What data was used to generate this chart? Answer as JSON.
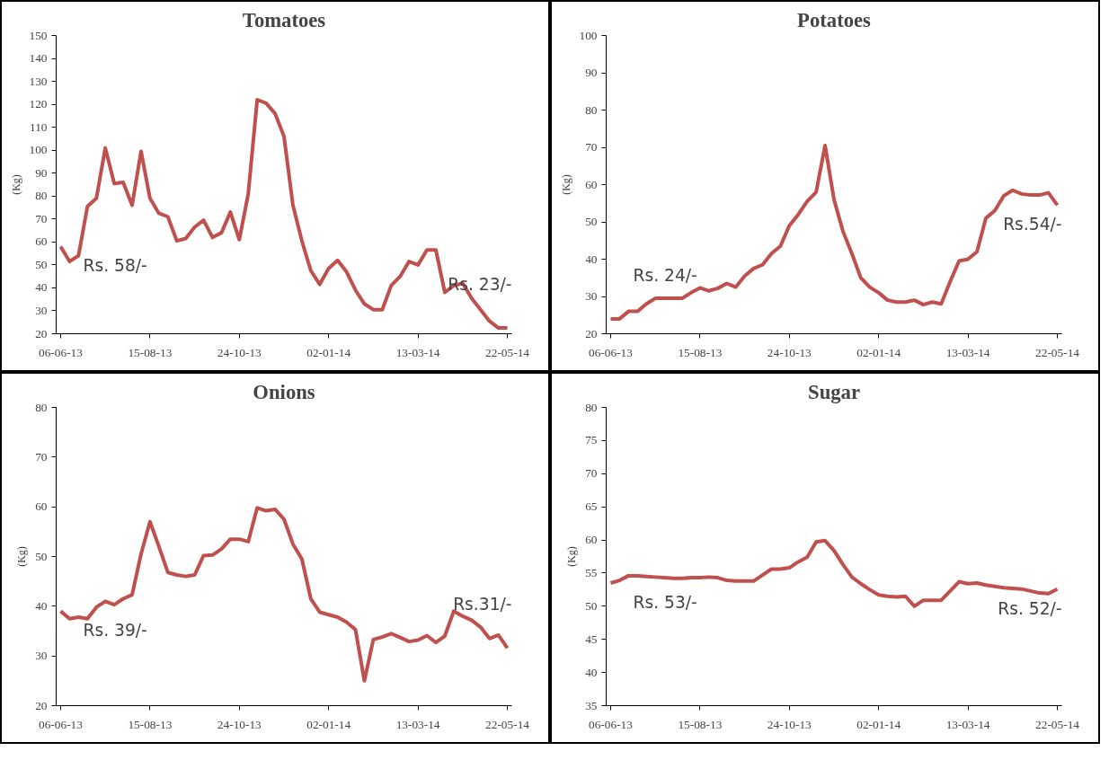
{
  "chart_data": [
    {
      "type": "line",
      "title": "Tomatoes",
      "ylabel": "(Kg)",
      "categories": [
        "06-06-13",
        null,
        null,
        null,
        null,
        null,
        null,
        null,
        null,
        null,
        "15-08-13",
        null,
        null,
        null,
        null,
        null,
        null,
        null,
        null,
        null,
        "24-10-13",
        null,
        null,
        null,
        null,
        null,
        null,
        null,
        null,
        null,
        "02-01-14",
        null,
        null,
        null,
        null,
        null,
        null,
        null,
        null,
        null,
        "13-03-14",
        null,
        null,
        null,
        null,
        null,
        null,
        null,
        null,
        null,
        "22-05-14"
      ],
      "series": [
        {
          "color": "#c0504d",
          "values": [
            58,
            51.5,
            54,
            75.5,
            79,
            101,
            85.5,
            86,
            76,
            99.5,
            79,
            72.5,
            71,
            60.5,
            61.5,
            66.5,
            69.5,
            62,
            64,
            73,
            61,
            81,
            122,
            120.5,
            116,
            106,
            76,
            60.5,
            47.5,
            41.5,
            48.5,
            52,
            47,
            39,
            33,
            30.5,
            30.5,
            41,
            45,
            51.5,
            50,
            56.5,
            56.5,
            38,
            41,
            42,
            35.5,
            30.5,
            25.5,
            22.5,
            22.5
          ]
        }
      ],
      "ylim": [
        20,
        150
      ],
      "yticks": [
        20,
        30,
        40,
        50,
        60,
        70,
        80,
        90,
        100,
        110,
        120,
        130,
        140,
        150
      ],
      "grid": false,
      "marker": "none",
      "line_style": "solid",
      "annotations": [
        {
          "text": "Rs. 58/-",
          "x": "06-06-13",
          "y": 58
        },
        {
          "text": "Rs. 23/-",
          "x": "22-05-14",
          "y": 22.5
        }
      ]
    },
    {
      "type": "line",
      "title": "Potatoes",
      "ylabel": "(Kg)",
      "categories": [
        "06-06-13",
        null,
        null,
        null,
        null,
        null,
        null,
        null,
        null,
        null,
        "15-08-13",
        null,
        null,
        null,
        null,
        null,
        null,
        null,
        null,
        null,
        "24-10-13",
        null,
        null,
        null,
        null,
        null,
        null,
        null,
        null,
        null,
        "02-01-14",
        null,
        null,
        null,
        null,
        null,
        null,
        null,
        null,
        null,
        "13-03-14",
        null,
        null,
        null,
        null,
        null,
        null,
        null,
        null,
        null,
        "22-05-14"
      ],
      "series": [
        {
          "color": "#c0504d",
          "values": [
            24,
            24,
            26,
            26,
            28,
            29.5,
            29.5,
            29.5,
            29.5,
            31,
            32.3,
            31.5,
            32.2,
            33.5,
            32.5,
            35.5,
            37.5,
            38.5,
            41.5,
            43.5,
            49,
            52,
            55.5,
            58,
            70.5,
            56,
            47.5,
            41.5,
            35,
            32.5,
            31,
            29,
            28.5,
            28.5,
            29,
            27.8,
            28.5,
            28,
            34,
            39.5,
            40,
            42,
            51,
            53,
            57,
            58.5,
            57.5,
            57.2,
            57.2,
            57.8,
            54.5
          ]
        }
      ],
      "ylim": [
        20,
        100
      ],
      "yticks": [
        20,
        30,
        40,
        50,
        60,
        70,
        80,
        90,
        100
      ],
      "grid": false,
      "marker": "none",
      "line_style": "solid",
      "annotations": [
        {
          "text": "Rs. 24/-",
          "x": "06-06-13",
          "y": 24
        },
        {
          "text": "Rs.54/-",
          "x": "22-05-14",
          "y": 54.5
        }
      ]
    },
    {
      "type": "line",
      "title": "Onions",
      "ylabel": "(Kg)",
      "categories": [
        "06-06-13",
        null,
        null,
        null,
        null,
        null,
        null,
        null,
        null,
        null,
        "15-08-13",
        null,
        null,
        null,
        null,
        null,
        null,
        null,
        null,
        null,
        "24-10-13",
        null,
        null,
        null,
        null,
        null,
        null,
        null,
        null,
        null,
        "02-01-14",
        null,
        null,
        null,
        null,
        null,
        null,
        null,
        null,
        null,
        "13-03-14",
        null,
        null,
        null,
        null,
        null,
        null,
        null,
        null,
        null,
        "22-05-14"
      ],
      "series": [
        {
          "color": "#c0504d",
          "values": [
            39,
            37.5,
            37.8,
            37.5,
            39.8,
            41,
            40.3,
            41.5,
            42.3,
            50.5,
            57,
            52,
            46.8,
            46.3,
            46,
            46.3,
            50.2,
            50.3,
            51.5,
            53.5,
            53.5,
            53,
            59.8,
            59.2,
            59.5,
            57.5,
            52.5,
            49.5,
            41.5,
            38.8,
            38.3,
            37.8,
            36.8,
            35.3,
            25,
            33.3,
            33.8,
            34.5,
            33.7,
            32.9,
            33.2,
            34.1,
            32.7,
            34,
            39,
            38,
            37.2,
            35.8,
            33.5,
            34.2,
            31.6
          ]
        }
      ],
      "ylim": [
        20,
        80
      ],
      "yticks": [
        20,
        30,
        40,
        50,
        60,
        70,
        80
      ],
      "grid": false,
      "marker": "none",
      "line_style": "solid",
      "annotations": [
        {
          "text": "Rs. 39/-",
          "x": "06-06-13",
          "y": 39
        },
        {
          "text": "Rs.31/-",
          "x": "22-05-14",
          "y": 31.6
        }
      ]
    },
    {
      "type": "line",
      "title": "Sugar",
      "ylabel": "(Kg)",
      "categories": [
        "06-06-13",
        null,
        null,
        null,
        null,
        null,
        null,
        null,
        null,
        null,
        "15-08-13",
        null,
        null,
        null,
        null,
        null,
        null,
        null,
        null,
        null,
        "24-10-13",
        null,
        null,
        null,
        null,
        null,
        null,
        null,
        null,
        null,
        "02-01-14",
        null,
        null,
        null,
        null,
        null,
        null,
        null,
        null,
        null,
        "13-03-14",
        null,
        null,
        null,
        null,
        null,
        null,
        null,
        null,
        null,
        "22-05-14"
      ],
      "series": [
        {
          "color": "#c0504d",
          "values": [
            53.5,
            53.9,
            54.6,
            54.6,
            54.5,
            54.4,
            54.3,
            54.2,
            54.2,
            54.3,
            54.3,
            54.4,
            54.3,
            53.9,
            53.8,
            53.8,
            53.8,
            54.7,
            55.6,
            55.6,
            55.8,
            56.7,
            57.4,
            59.7,
            59.9,
            58.4,
            56.3,
            54.4,
            53.4,
            52.5,
            51.7,
            51.5,
            51.4,
            51.5,
            50,
            50.9,
            50.9,
            50.9,
            52.3,
            53.7,
            53.4,
            53.5,
            53.2,
            53,
            52.8,
            52.7,
            52.6,
            52.3,
            52,
            51.9,
            52.6
          ]
        }
      ],
      "ylim": [
        35,
        80
      ],
      "yticks": [
        35,
        40,
        45,
        50,
        55,
        60,
        65,
        70,
        75,
        80
      ],
      "grid": false,
      "marker": "none",
      "line_style": "solid",
      "annotations": [
        {
          "text": "Rs. 53/-",
          "x": "06-06-13",
          "y": 53.5
        },
        {
          "text": "Rs. 52/-",
          "x": "22-05-14",
          "y": 52.6
        }
      ]
    }
  ]
}
